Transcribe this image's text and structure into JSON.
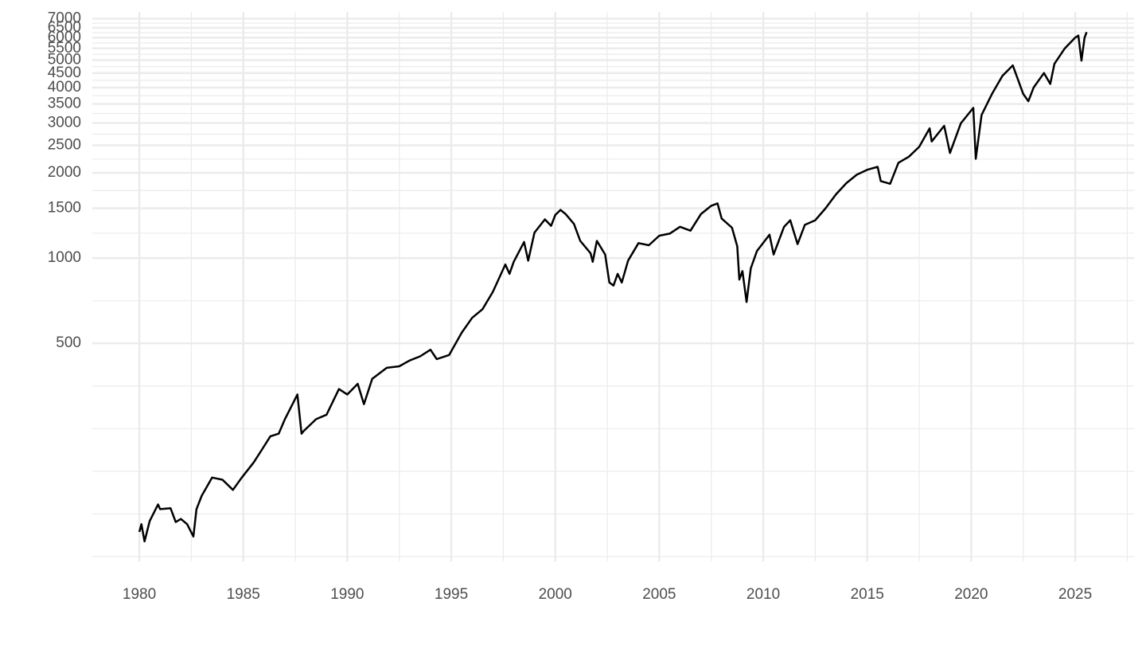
{
  "chart_data": {
    "type": "line",
    "log_y": true,
    "grid": true,
    "x": [
      1980.0,
      1980.1,
      1980.25,
      1980.5,
      1980.9,
      1981.0,
      1981.5,
      1981.75,
      1982.0,
      1982.3,
      1982.6,
      1982.75,
      1983.0,
      1983.5,
      1984.0,
      1984.5,
      1984.9,
      1985.5,
      1985.9,
      1986.3,
      1986.7,
      1987.0,
      1987.6,
      1987.8,
      1987.9,
      1988.5,
      1989.0,
      1989.6,
      1990.0,
      1990.5,
      1990.8,
      1991.2,
      1991.9,
      1992.5,
      1993.0,
      1993.5,
      1994.0,
      1994.3,
      1994.9,
      1995.5,
      1996.0,
      1996.5,
      1997.0,
      1997.6,
      1997.8,
      1998.0,
      1998.5,
      1998.7,
      1999.0,
      1999.5,
      1999.8,
      2000.0,
      2000.25,
      2000.5,
      2000.9,
      2001.2,
      2001.7,
      2001.8,
      2002.0,
      2002.4,
      2002.6,
      2002.8,
      2003.0,
      2003.2,
      2003.5,
      2004.0,
      2004.5,
      2005.0,
      2005.5,
      2006.0,
      2006.5,
      2007.0,
      2007.5,
      2007.8,
      2008.0,
      2008.5,
      2008.75,
      2008.85,
      2009.0,
      2009.2,
      2009.4,
      2009.7,
      2010.3,
      2010.5,
      2011.0,
      2011.3,
      2011.65,
      2012.0,
      2012.5,
      2013.0,
      2013.5,
      2014.0,
      2014.5,
      2015.0,
      2015.5,
      2015.65,
      2016.1,
      2016.5,
      2017.0,
      2017.5,
      2018.0,
      2018.1,
      2018.7,
      2018.98,
      2019.5,
      2020.1,
      2020.22,
      2020.5,
      2021.0,
      2021.5,
      2022.0,
      2022.5,
      2022.75,
      2023.0,
      2023.5,
      2023.8,
      2024.0,
      2024.5,
      2025.0,
      2025.15,
      2025.3,
      2025.45,
      2025.55
    ],
    "series": [
      {
        "color": "#000000",
        "values": [
          108,
          115,
          100,
          118,
          135,
          130,
          131,
          117,
          120,
          115,
          104,
          130,
          145,
          168,
          165,
          152,
          167,
          190,
          211,
          235,
          240,
          270,
          330,
          240,
          245,
          270,
          280,
          345,
          330,
          360,
          305,
          375,
          410,
          415,
          435,
          450,
          475,
          440,
          455,
          545,
          615,
          660,
          760,
          950,
          880,
          970,
          1140,
          980,
          1230,
          1370,
          1300,
          1420,
          1480,
          1430,
          1320,
          1150,
          1040,
          970,
          1150,
          1030,
          820,
          800,
          880,
          820,
          980,
          1130,
          1110,
          1200,
          1220,
          1290,
          1250,
          1430,
          1530,
          1560,
          1380,
          1280,
          1100,
          840,
          900,
          700,
          920,
          1060,
          1210,
          1030,
          1290,
          1360,
          1120,
          1310,
          1360,
          1500,
          1680,
          1840,
          1970,
          2050,
          2100,
          1870,
          1830,
          2170,
          2280,
          2470,
          2870,
          2580,
          2930,
          2350,
          2990,
          3390,
          2240,
          3200,
          3800,
          4400,
          4790,
          3800,
          3580,
          4000,
          4500,
          4120,
          4850,
          5500,
          6000,
          6100,
          4980,
          6000,
          6280
        ]
      }
    ],
    "xlim": [
      1977.74,
      2027.83
    ],
    "xticks": [
      1980,
      1985,
      1990,
      1995,
      2000,
      2005,
      2010,
      2015,
      2020,
      2025
    ],
    "ylim": [
      85,
      7300
    ],
    "yticks": [
      500,
      1000,
      1500,
      2000,
      2500,
      3000,
      3500,
      4000,
      4500,
      5000,
      5500,
      6000,
      6500,
      7000
    ]
  }
}
